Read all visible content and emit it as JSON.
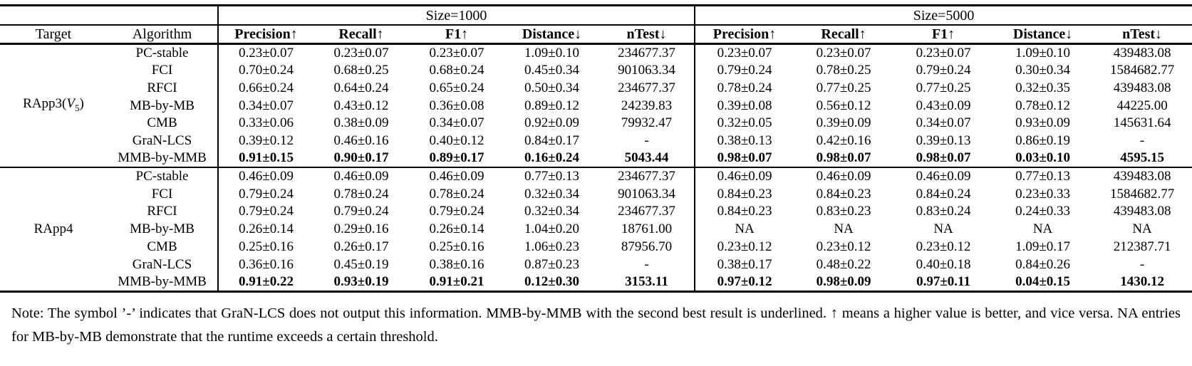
{
  "table": {
    "group_headers": [
      {
        "label": "Size=1000"
      },
      {
        "label": "Size=5000"
      }
    ],
    "column_headers": {
      "target": "Target",
      "algorithm": "Algorithm",
      "metrics": [
        "Precision↑",
        "Recall↑",
        "F1↑",
        "Distance↓",
        "nTest↓"
      ]
    },
    "groups": [
      {
        "target": {
          "text": "RApp3(",
          "italic_var": "V",
          "subscript": "5",
          "close": ")"
        },
        "rows": [
          {
            "algorithm": "PC-stable",
            "bold": false,
            "size1000": [
              "0.23±0.07",
              "0.23±0.07",
              "0.23±0.07",
              "1.09±0.10",
              "234677.37"
            ],
            "size5000": [
              "0.23±0.07",
              "0.23±0.07",
              "0.23±0.07",
              "1.09±0.10",
              "439483.08"
            ]
          },
          {
            "algorithm": "FCI",
            "bold": false,
            "size1000": [
              "0.70±0.24",
              "0.68±0.25",
              "0.68±0.24",
              "0.45±0.34",
              "901063.34"
            ],
            "size5000": [
              "0.79±0.24",
              "0.78±0.25",
              "0.79±0.24",
              "0.30±0.34",
              "1584682.77"
            ]
          },
          {
            "algorithm": "RFCI",
            "bold": false,
            "size1000": [
              "0.66±0.24",
              "0.64±0.24",
              "0.65±0.24",
              "0.50±0.34",
              "234677.37"
            ],
            "size5000": [
              "0.78±0.24",
              "0.77±0.25",
              "0.77±0.25",
              "0.32±0.35",
              "439483.08"
            ]
          },
          {
            "algorithm": "MB-by-MB",
            "bold": false,
            "size1000": [
              "0.34±0.07",
              "0.43±0.12",
              "0.36±0.08",
              "0.89±0.12",
              "24239.83"
            ],
            "size5000": [
              "0.39±0.08",
              "0.56±0.12",
              "0.43±0.09",
              "0.78±0.12",
              "44225.00"
            ]
          },
          {
            "algorithm": "CMB",
            "bold": false,
            "size1000": [
              "0.33±0.06",
              "0.38±0.09",
              "0.34±0.07",
              "0.92±0.09",
              "79932.47"
            ],
            "size5000": [
              "0.32±0.05",
              "0.39±0.09",
              "0.34±0.07",
              "0.93±0.09",
              "145631.64"
            ]
          },
          {
            "algorithm": "GraN-LCS",
            "bold": false,
            "size1000": [
              "0.39±0.12",
              "0.46±0.16",
              "0.40±0.12",
              "0.84±0.17",
              "-"
            ],
            "size5000": [
              "0.38±0.13",
              "0.42±0.16",
              "0.39±0.13",
              "0.86±0.19",
              "-"
            ]
          },
          {
            "algorithm": "MMB-by-MMB",
            "bold": true,
            "size1000": [
              "0.91±0.15",
              "0.90±0.17",
              "0.89±0.17",
              "0.16±0.24",
              "5043.44"
            ],
            "size5000": [
              "0.98±0.07",
              "0.98±0.07",
              "0.98±0.07",
              "0.03±0.10",
              "4595.15"
            ]
          }
        ]
      },
      {
        "target": {
          "text": "RApp4",
          "italic_var": "",
          "subscript": "",
          "close": ""
        },
        "rows": [
          {
            "algorithm": "PC-stable",
            "bold": false,
            "size1000": [
              "0.46±0.09",
              "0.46±0.09",
              "0.46±0.09",
              "0.77±0.13",
              "234677.37"
            ],
            "size5000": [
              "0.46±0.09",
              "0.46±0.09",
              "0.46±0.09",
              "0.77±0.13",
              "439483.08"
            ]
          },
          {
            "algorithm": "FCI",
            "bold": false,
            "size1000": [
              "0.79±0.24",
              "0.78±0.24",
              "0.78±0.24",
              "0.32±0.34",
              "901063.34"
            ],
            "size5000": [
              "0.84±0.23",
              "0.84±0.23",
              "0.84±0.24",
              "0.23±0.33",
              "1584682.77"
            ]
          },
          {
            "algorithm": "RFCI",
            "bold": false,
            "size1000": [
              "0.79±0.24",
              "0.79±0.24",
              "0.79±0.24",
              "0.32±0.34",
              "234677.37"
            ],
            "size5000": [
              "0.84±0.23",
              "0.83±0.23",
              "0.83±0.24",
              "0.24±0.33",
              "439483.08"
            ]
          },
          {
            "algorithm": "MB-by-MB",
            "bold": false,
            "size1000": [
              "0.26±0.14",
              "0.29±0.16",
              "0.26±0.14",
              "1.04±0.20",
              "18761.00"
            ],
            "size5000": [
              "NA",
              "NA",
              "NA",
              "NA",
              "NA"
            ]
          },
          {
            "algorithm": "CMB",
            "bold": false,
            "size1000": [
              "0.25±0.16",
              "0.26±0.17",
              "0.25±0.16",
              "1.06±0.23",
              "87956.70"
            ],
            "size5000": [
              "0.23±0.12",
              "0.23±0.12",
              "0.23±0.12",
              "1.09±0.17",
              "212387.71"
            ]
          },
          {
            "algorithm": "GraN-LCS",
            "bold": false,
            "size1000": [
              "0.36±0.16",
              "0.45±0.19",
              "0.38±0.16",
              "0.87±0.23",
              "-"
            ],
            "size5000": [
              "0.38±0.17",
              "0.48±0.22",
              "0.40±0.18",
              "0.84±0.26",
              "-"
            ]
          },
          {
            "algorithm": "MMB-by-MMB",
            "bold": true,
            "size1000": [
              "0.91±0.22",
              "0.93±0.19",
              "0.91±0.21",
              "0.12±0.30",
              "3153.11"
            ],
            "size5000": [
              "0.97±0.12",
              "0.98±0.09",
              "0.97±0.11",
              "0.04±0.15",
              "1430.12"
            ]
          }
        ]
      }
    ]
  },
  "note": {
    "text": "Note: The symbol ’-’ indicates that GraN-LCS does not output this information. MMB-by-MMB with the second best result is underlined. ↑ means a higher value is better, and vice versa. NA entries for MB-by-MB demonstrate that the runtime exceeds a certain threshold."
  }
}
